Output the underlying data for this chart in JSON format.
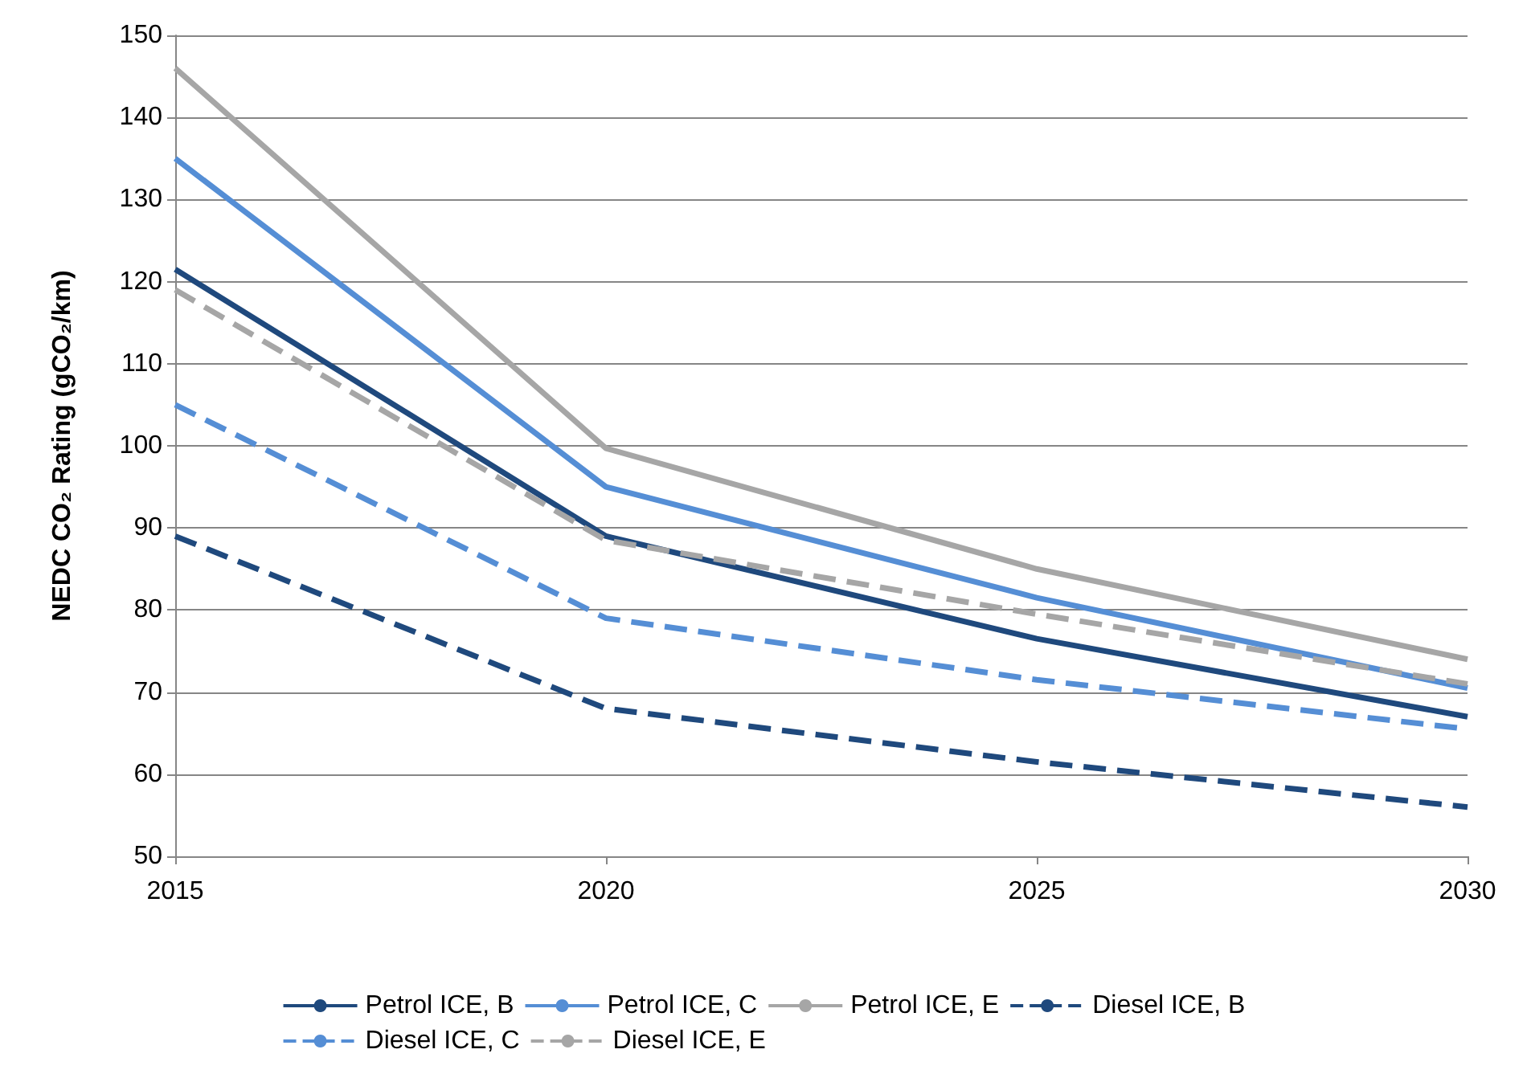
{
  "chart_data": {
    "type": "line",
    "ylabel": "NEDC CO₂ Rating (gCO₂/km)",
    "x": [
      2015,
      2020,
      2025,
      2030
    ],
    "xlim": [
      2015,
      2030
    ],
    "xticks": [
      2015,
      2020,
      2025,
      2030
    ],
    "ylim": [
      50,
      150
    ],
    "yticks": [
      50,
      60,
      70,
      80,
      90,
      100,
      110,
      120,
      130,
      140,
      150
    ],
    "grid": "y",
    "legend": "bottom",
    "marker": "none",
    "series": [
      {
        "name": "Petrol ICE, B",
        "color": "#1f497d",
        "line_style": "solid",
        "values": [
          121.5,
          89,
          76.5,
          67
        ]
      },
      {
        "name": "Petrol ICE, C",
        "color": "#558ed5",
        "line_style": "solid",
        "values": [
          135,
          95,
          81.5,
          70.5
        ]
      },
      {
        "name": "Petrol ICE, E",
        "color": "#a6a6a6",
        "line_style": "solid",
        "values": [
          146,
          99.7,
          85,
          74
        ]
      },
      {
        "name": "Diesel ICE, B",
        "color": "#1f497d",
        "line_style": "dashed",
        "values": [
          89,
          68,
          61.5,
          56
        ]
      },
      {
        "name": "Diesel ICE, C",
        "color": "#558ed5",
        "line_style": "dashed",
        "values": [
          105,
          79,
          71.5,
          65.5
        ]
      },
      {
        "name": "Diesel ICE, E",
        "color": "#a6a6a6",
        "line_style": "dashed",
        "values": [
          119,
          88.5,
          79.5,
          71
        ]
      }
    ]
  }
}
